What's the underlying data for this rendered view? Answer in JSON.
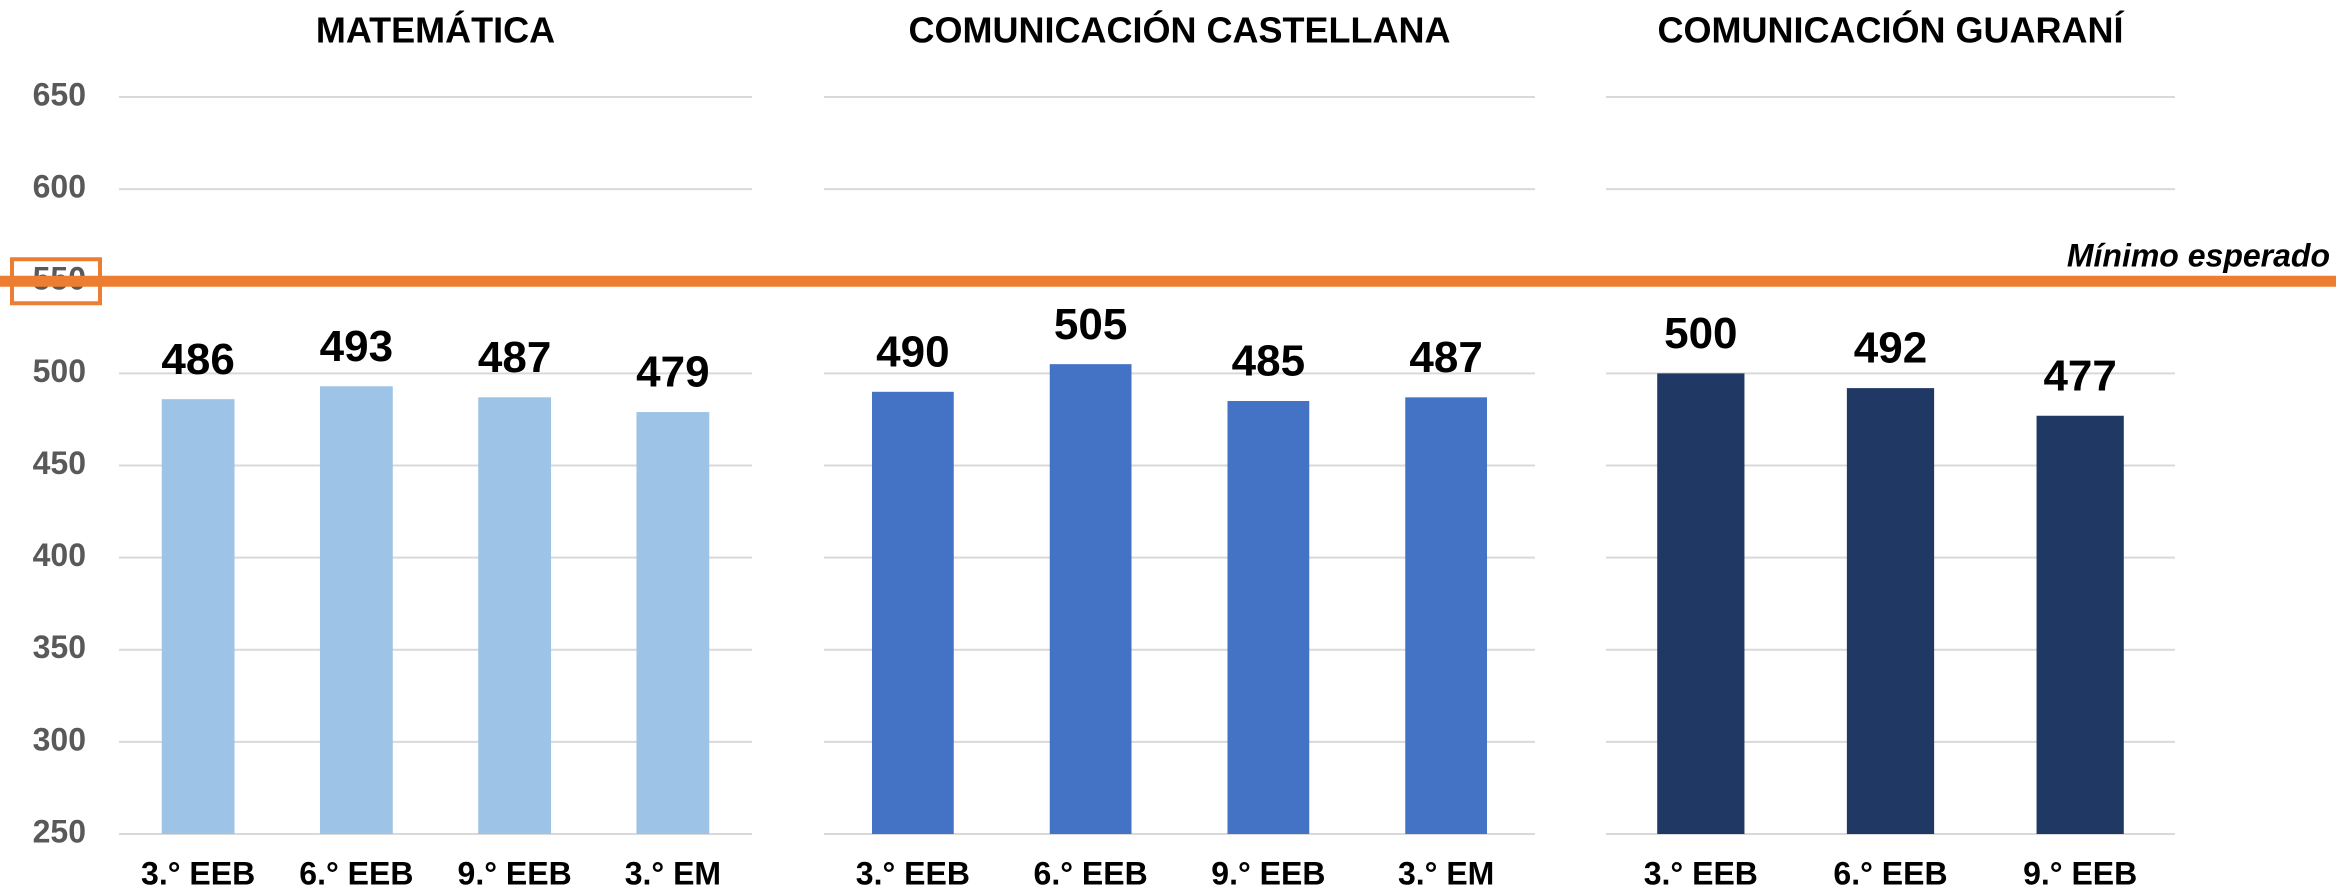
{
  "chart_data": [
    {
      "type": "bar",
      "title": "MATEMÁTICA",
      "categories": [
        "3.° EEB",
        "6.° EEB",
        "9.° EEB",
        "3.° EM"
      ],
      "values": [
        486,
        493,
        487,
        479
      ],
      "color": "#9dc3e6",
      "ylim": [
        250,
        650
      ],
      "yticks": [
        250,
        300,
        350,
        400,
        450,
        500,
        550,
        600,
        650
      ],
      "grid": true,
      "ytick_labels": true
    },
    {
      "type": "bar",
      "title": "COMUNICACIÓN CASTELLANA",
      "categories": [
        "3.° EEB",
        "6.° EEB",
        "9.° EEB",
        "3.° EM"
      ],
      "values": [
        490,
        505,
        485,
        487
      ],
      "color": "#4472c4",
      "ylim": [
        250,
        650
      ],
      "yticks": [
        250,
        300,
        350,
        400,
        450,
        500,
        550,
        600,
        650
      ],
      "grid": true,
      "ytick_labels": false
    },
    {
      "type": "bar",
      "title": "COMUNICACIÓN GUARANÍ",
      "categories": [
        "3.° EEB",
        "6.° EEB",
        "9.° EEB"
      ],
      "values": [
        500,
        492,
        477
      ],
      "color": "#203864",
      "ylim": [
        250,
        650
      ],
      "yticks": [
        250,
        300,
        350,
        400,
        450,
        500,
        550,
        600,
        650
      ],
      "grid": true,
      "ytick_labels": false
    }
  ],
  "reference_line": {
    "value": 550,
    "label": "Mínimo esperado",
    "color": "#ed7d31"
  }
}
